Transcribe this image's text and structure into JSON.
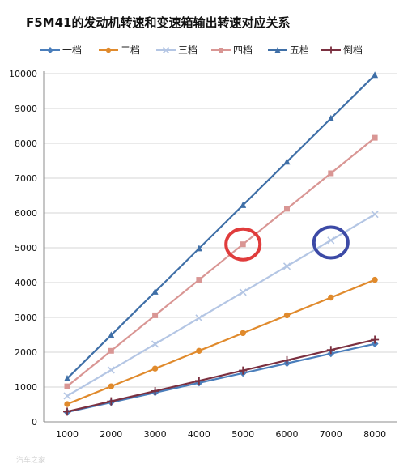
{
  "chart_data": {
    "type": "line",
    "title": "F5M41的发动机转速和变速箱输出转速对应关系",
    "xlabel": "",
    "ylabel": "",
    "x": [
      1000,
      2000,
      3000,
      4000,
      5000,
      6000,
      7000,
      8000
    ],
    "x_tick_labels": [
      "1000",
      "2000",
      "3000",
      "4000",
      "5000",
      "6000",
      "7000",
      "8000"
    ],
    "ylim": [
      0,
      10000
    ],
    "y_ticks": [
      0,
      1000,
      2000,
      3000,
      4000,
      5000,
      6000,
      7000,
      8000,
      9000,
      10000
    ],
    "y_tick_labels": [
      "0",
      "1000",
      "2000",
      "3000",
      "4000",
      "5000",
      "6000",
      "7000",
      "8000",
      "9000",
      "10000"
    ],
    "grid": "horizontal",
    "legend_position": "top",
    "series": [
      {
        "name": "一档",
        "marker": "diamond",
        "color": "#4a7ebb",
        "values": [
          280,
          560,
          840,
          1120,
          1400,
          1680,
          1960,
          2240
        ]
      },
      {
        "name": "二档",
        "marker": "circle",
        "color": "#e08a2c",
        "values": [
          510,
          1020,
          1530,
          2040,
          2550,
          3060,
          3570,
          4080
        ]
      },
      {
        "name": "三档",
        "marker": "x",
        "color": "#b4c6e4",
        "values": [
          745,
          1490,
          2235,
          2980,
          3725,
          4470,
          5215,
          5960
        ]
      },
      {
        "name": "四档",
        "marker": "square",
        "color": "#d99694",
        "values": [
          1020,
          2040,
          3060,
          4080,
          5100,
          6120,
          7140,
          8160
        ]
      },
      {
        "name": "五档",
        "marker": "triangle",
        "color": "#3f6fa7",
        "values": [
          1245,
          2490,
          3735,
          4980,
          6225,
          7470,
          8715,
          9960
        ]
      },
      {
        "name": "倒档",
        "marker": "plus",
        "color": "#7b3040",
        "values": [
          295,
          590,
          885,
          1180,
          1475,
          1770,
          2065,
          2360
        ]
      }
    ],
    "annotations": [
      {
        "shape": "circle",
        "color": "#e03c3c",
        "x": 5000,
        "y": 5100
      },
      {
        "shape": "circle",
        "color": "#3c4aa6",
        "x": 7000,
        "y": 5150
      }
    ],
    "watermark": "汽车之家"
  }
}
